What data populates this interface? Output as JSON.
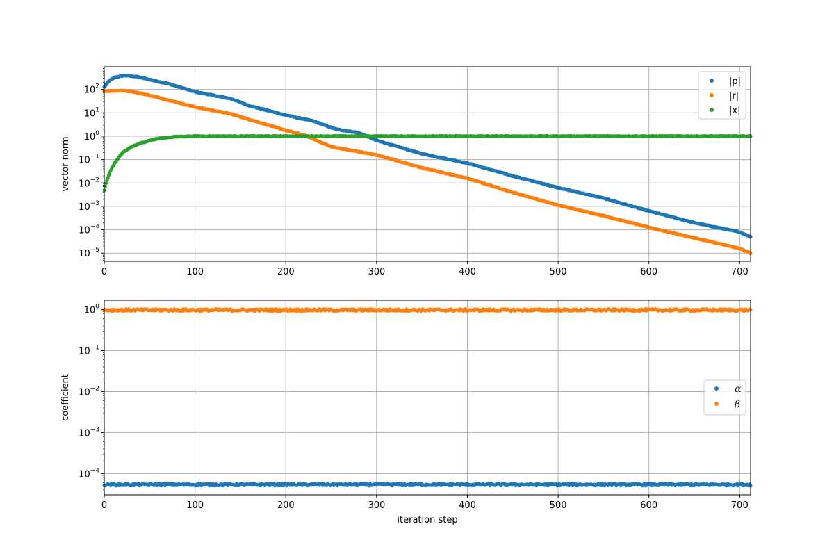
{
  "chart_data": [
    {
      "type": "scatter",
      "name": "top",
      "title": "",
      "xlabel": "",
      "ylabel": "vector norm",
      "yscale": "log",
      "xlim": [
        0,
        712
      ],
      "ylim_exp": [
        -5.35,
        2.97
      ],
      "xticks": [
        "0",
        "100",
        "200",
        "300",
        "400",
        "500",
        "600",
        "700"
      ],
      "yticks": [
        "10",
        "10",
        "10",
        "10",
        "10",
        "10",
        "10",
        "10"
      ],
      "ytick_exponents": [
        "-5",
        "-4",
        "-3",
        "-2",
        "-1",
        "0",
        "1",
        "2"
      ],
      "grid": true,
      "legend_position": "top-right",
      "series": [
        {
          "name": "|p|",
          "color": "#1f77b4",
          "points_log10": [
            [
              0,
              2.1
            ],
            [
              5,
              2.35
            ],
            [
              12,
              2.52
            ],
            [
              22,
              2.6
            ],
            [
              35,
              2.55
            ],
            [
              50,
              2.42
            ],
            [
              70,
              2.25
            ],
            [
              100,
              1.9
            ],
            [
              140,
              1.6
            ],
            [
              160,
              1.3
            ],
            [
              200,
              0.9
            ],
            [
              230,
              0.65
            ],
            [
              255,
              0.3
            ],
            [
              280,
              0.15
            ],
            [
              300,
              -0.18
            ],
            [
              350,
              -0.75
            ],
            [
              400,
              -1.15
            ],
            [
              450,
              -1.7
            ],
            [
              500,
              -2.2
            ],
            [
              550,
              -2.65
            ],
            [
              600,
              -3.2
            ],
            [
              650,
              -3.7
            ],
            [
              700,
              -4.1
            ],
            [
              712,
              -4.3
            ]
          ]
        },
        {
          "name": "|r|",
          "color": "#ff7f0e",
          "points_log10": [
            [
              0,
              1.93
            ],
            [
              20,
              1.95
            ],
            [
              30,
              1.92
            ],
            [
              50,
              1.75
            ],
            [
              100,
              1.25
            ],
            [
              140,
              0.95
            ],
            [
              200,
              0.25
            ],
            [
              220,
              0.05
            ],
            [
              250,
              -0.45
            ],
            [
              300,
              -0.8
            ],
            [
              350,
              -1.35
            ],
            [
              400,
              -1.8
            ],
            [
              450,
              -2.4
            ],
            [
              500,
              -2.95
            ],
            [
              550,
              -3.4
            ],
            [
              600,
              -3.9
            ],
            [
              650,
              -4.35
            ],
            [
              700,
              -4.8
            ],
            [
              712,
              -5.0
            ]
          ]
        },
        {
          "name": "|x|",
          "color": "#2ca02c",
          "points_log10": [
            [
              0,
              -2.3
            ],
            [
              2,
              -2.0
            ],
            [
              5,
              -1.65
            ],
            [
              10,
              -1.25
            ],
            [
              15,
              -0.95
            ],
            [
              20,
              -0.72
            ],
            [
              30,
              -0.45
            ],
            [
              40,
              -0.3
            ],
            [
              50,
              -0.18
            ],
            [
              60,
              -0.1
            ],
            [
              70,
              -0.05
            ],
            [
              80,
              -0.02
            ],
            [
              100,
              0.0
            ],
            [
              712,
              0.0
            ]
          ]
        }
      ]
    },
    {
      "type": "scatter",
      "name": "bottom",
      "title": "",
      "xlabel": "iteration step",
      "ylabel": "coefficient",
      "yscale": "log",
      "xlim": [
        0,
        712
      ],
      "ylim_exp": [
        -4.52,
        0.23
      ],
      "xticks": [
        "0",
        "100",
        "200",
        "300",
        "400",
        "500",
        "600",
        "700"
      ],
      "yticks": [
        "10",
        "10",
        "10",
        "10",
        "10"
      ],
      "ytick_exponents": [
        "-4",
        "-3",
        "-2",
        "-1",
        "0"
      ],
      "grid": true,
      "legend_position": "center-right",
      "series": [
        {
          "name": "α",
          "color": "#1f77b4",
          "points_log10": [
            [
              0,
              -4.27
            ],
            [
              712,
              -4.27
            ]
          ]
        },
        {
          "name": "β",
          "color": "#ff7f0e",
          "points_log10": [
            [
              0,
              -0.01
            ],
            [
              712,
              -0.01
            ]
          ]
        }
      ]
    }
  ]
}
